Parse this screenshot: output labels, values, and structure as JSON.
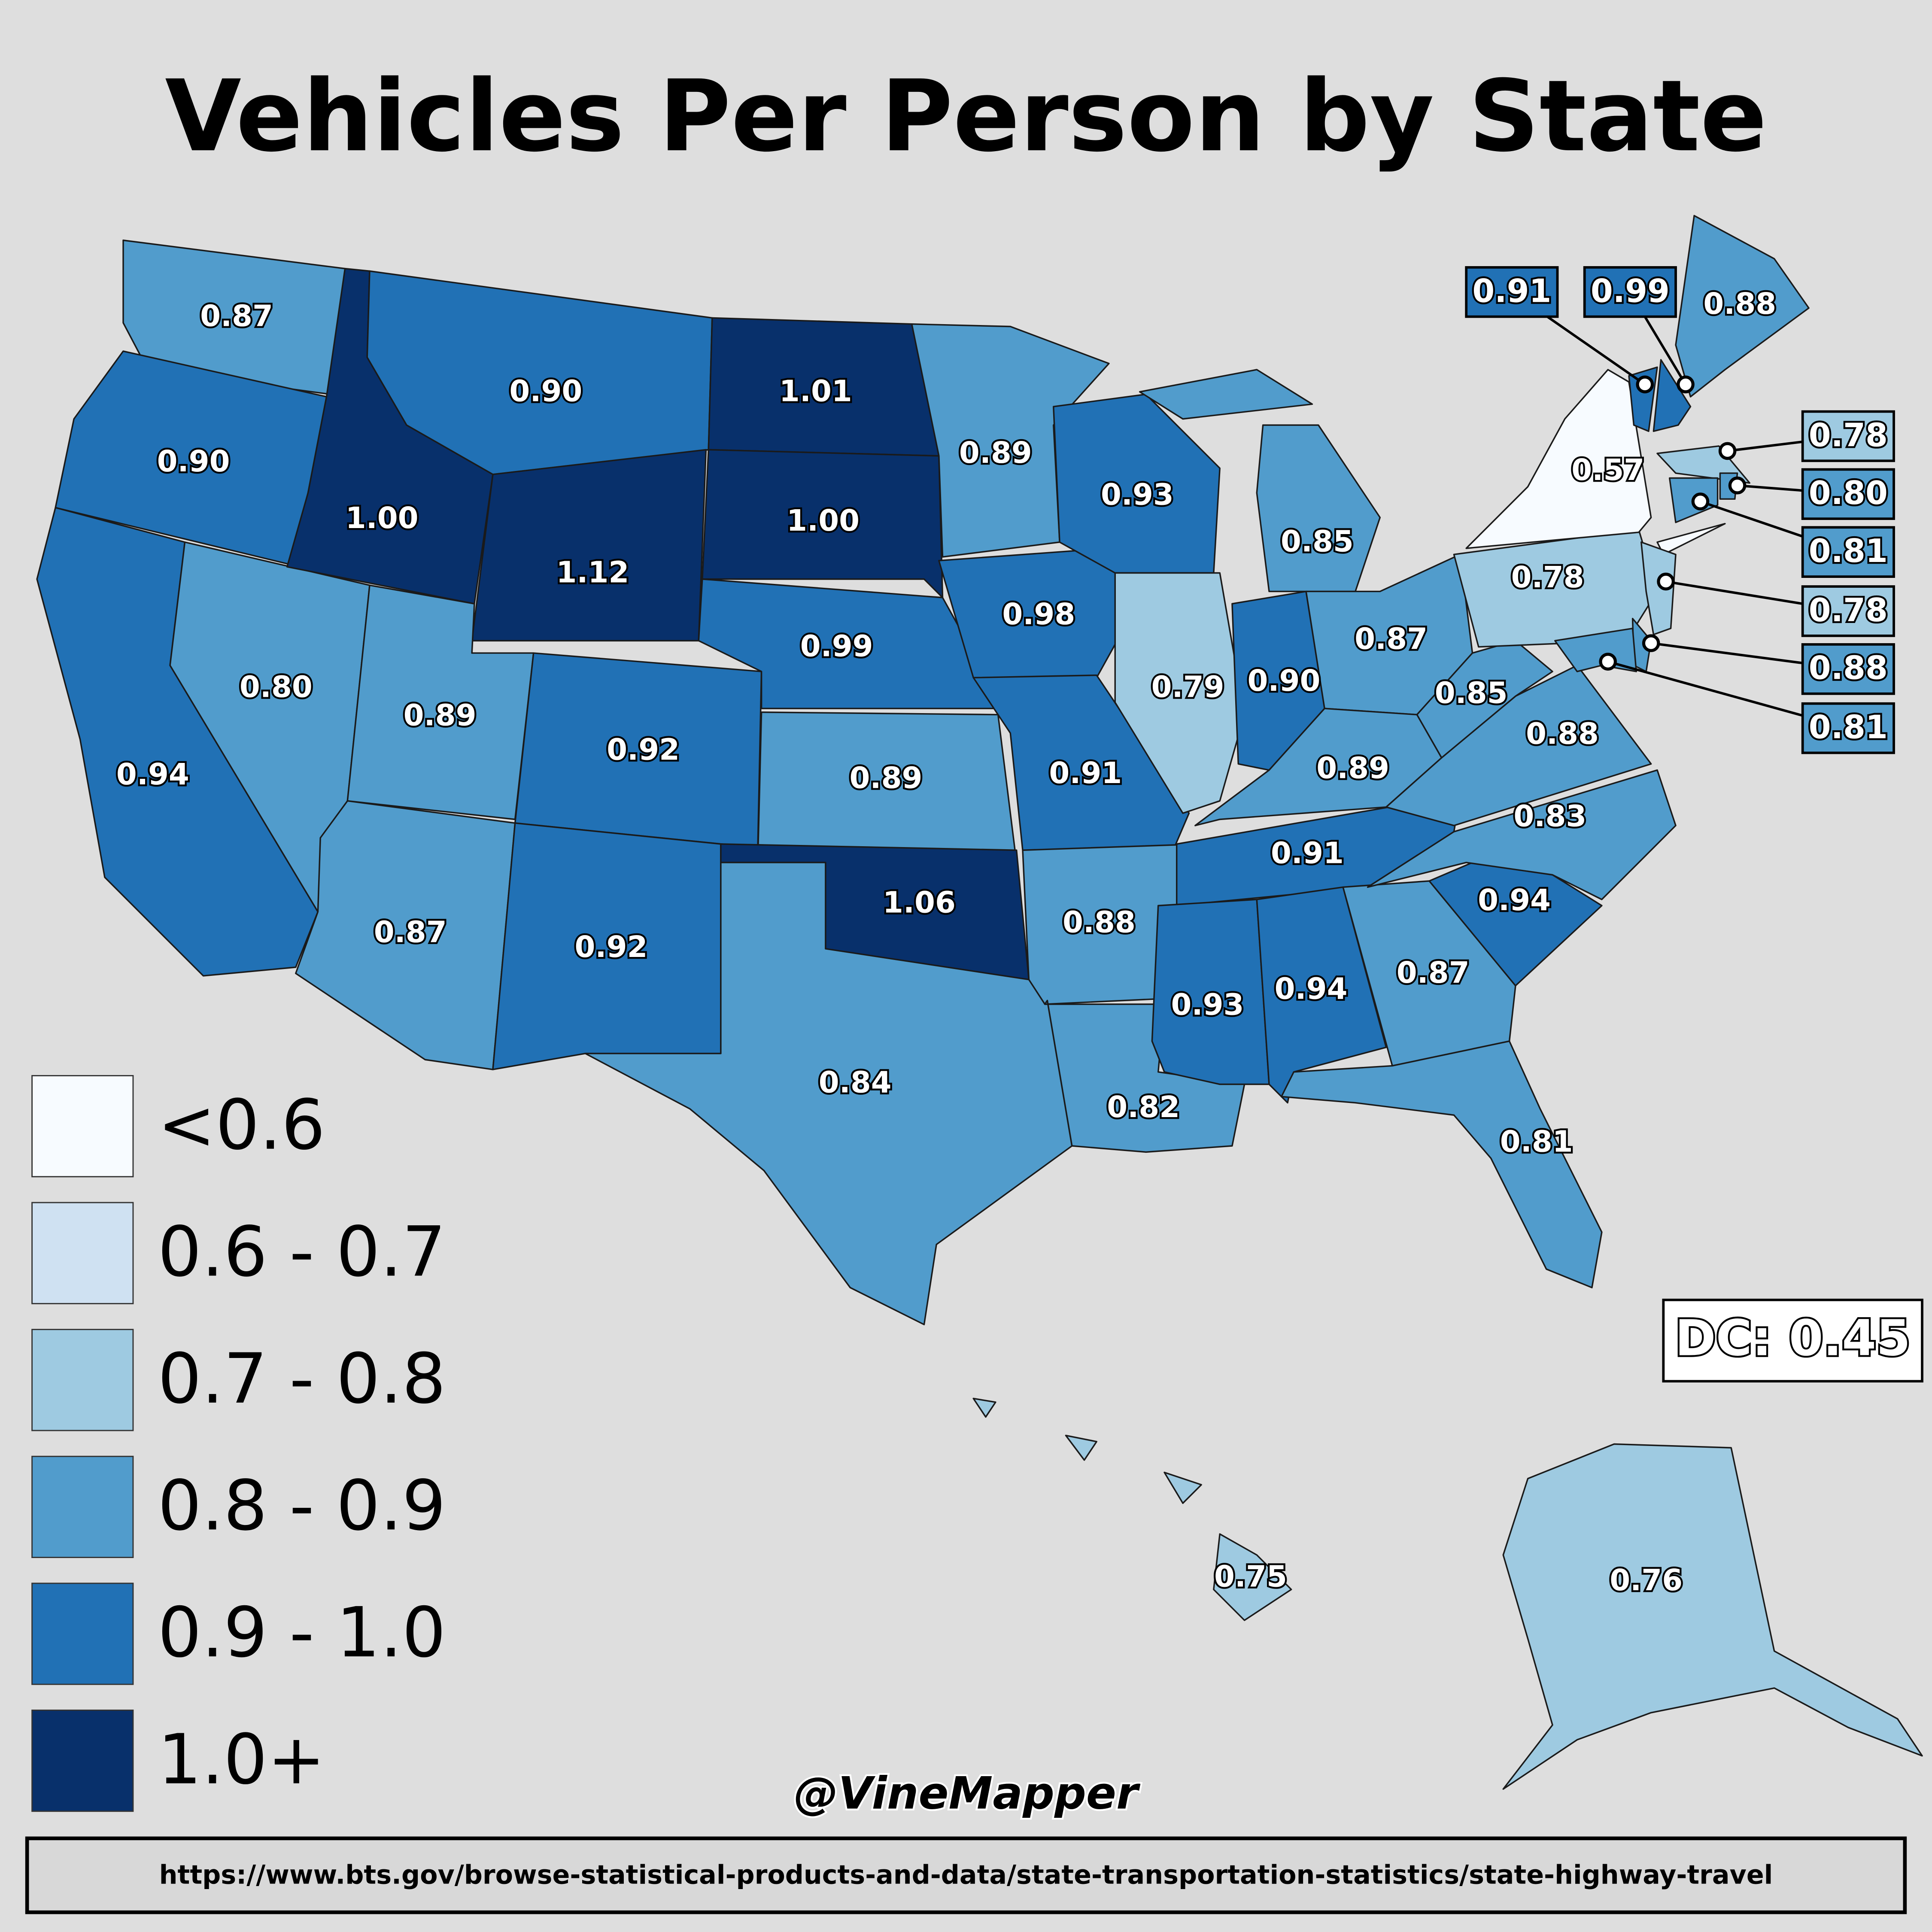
{
  "title": "Vehicles Per Person by State",
  "states": [
    {
      "label": "0.87",
      "color": "#519ccc"
    },
    {
      "label": "0.90",
      "color": "#2171b5"
    },
    {
      "label": "0.94",
      "color": "#2171b5"
    },
    {
      "label": "0.80",
      "color": "#519ccc"
    },
    {
      "label": "1.00",
      "color": "#08306b"
    },
    {
      "label": "0.90",
      "color": "#2171b5"
    },
    {
      "label": "1.12",
      "color": "#08306b"
    },
    {
      "label": "0.89",
      "color": "#519ccc"
    },
    {
      "label": "0.92",
      "color": "#2171b5"
    },
    {
      "label": "0.87",
      "color": "#519ccc"
    },
    {
      "label": "0.92",
      "color": "#2171b5"
    },
    {
      "label": "1.01",
      "color": "#08306b"
    },
    {
      "label": "1.00",
      "color": "#08306b"
    },
    {
      "label": "0.99",
      "color": "#2171b5"
    },
    {
      "label": "0.89",
      "color": "#519ccc"
    },
    {
      "label": "1.06",
      "color": "#08306b"
    },
    {
      "label": "0.84",
      "color": "#519ccc"
    },
    {
      "label": "0.89",
      "color": "#519ccc"
    },
    {
      "label": "0.98",
      "color": "#2171b5"
    },
    {
      "label": "0.91",
      "color": "#2171b5"
    },
    {
      "label": "0.88",
      "color": "#519ccc"
    },
    {
      "label": "0.82",
      "color": "#519ccc"
    },
    {
      "label": "0.93",
      "color": "#2171b5"
    },
    {
      "label": "0.79",
      "color": "#9ecae1"
    },
    {
      "label": "0.85",
      "color": "#519ccc"
    },
    {
      "label": "0.90",
      "color": "#2171b5"
    },
    {
      "label": "0.87",
      "color": "#519ccc"
    },
    {
      "label": "0.89",
      "color": "#519ccc"
    },
    {
      "label": "0.91",
      "color": "#2171b5"
    },
    {
      "label": "0.93",
      "color": "#2171b5"
    },
    {
      "label": "0.94",
      "color": "#2171b5"
    },
    {
      "label": "0.87",
      "color": "#519ccc"
    },
    {
      "label": "0.81",
      "color": "#519ccc"
    },
    {
      "label": "0.94",
      "color": "#2171b5"
    },
    {
      "label": "0.83",
      "color": "#519ccc"
    },
    {
      "label": "0.88",
      "color": "#519ccc"
    },
    {
      "label": "0.85",
      "color": "#519ccc"
    },
    {
      "label": "0.78",
      "color": "#9ecae1"
    },
    {
      "label": "0.57",
      "color": "#f7fbff"
    },
    {
      "label": "0.88",
      "color": "#519ccc"
    },
    {
      "label": "0.76",
      "color": "#9ecae1"
    },
    {
      "label": "0.75",
      "color": "#9ecae1"
    },
    {
      "label": "0.91",
      "color": "#2171b5"
    },
    {
      "label": "0.99",
      "color": "#2171b5"
    },
    {
      "label": "0.78",
      "color": "#9ecae1"
    },
    {
      "label": "0.80",
      "color": "#519ccc"
    },
    {
      "label": "0.81",
      "color": "#519ccc"
    },
    {
      "label": "0.78",
      "color": "#9ecae1"
    },
    {
      "label": "0.88",
      "color": "#519ccc"
    },
    {
      "label": "0.81",
      "color": "#519ccc"
    }
  ],
  "legend": [
    {
      "label": "<0.6",
      "color": "#f7fbff"
    },
    {
      "label": "0.6 - 0.7",
      "color": "#cfe1f2"
    },
    {
      "label": "0.7 - 0.8",
      "color": "#9ecae1"
    },
    {
      "label": "0.8 - 0.9",
      "color": "#519ccc"
    },
    {
      "label": "0.9 - 1.0",
      "color": "#2171b5"
    },
    {
      "label": "1.0+",
      "color": "#08306b"
    }
  ],
  "dc_note": "DC: 0.45",
  "credit": "@VineMapper",
  "source": "https://www.bts.gov/browse-statistical-products-and-data/state-transportation-statistics/state-highway-travel"
}
